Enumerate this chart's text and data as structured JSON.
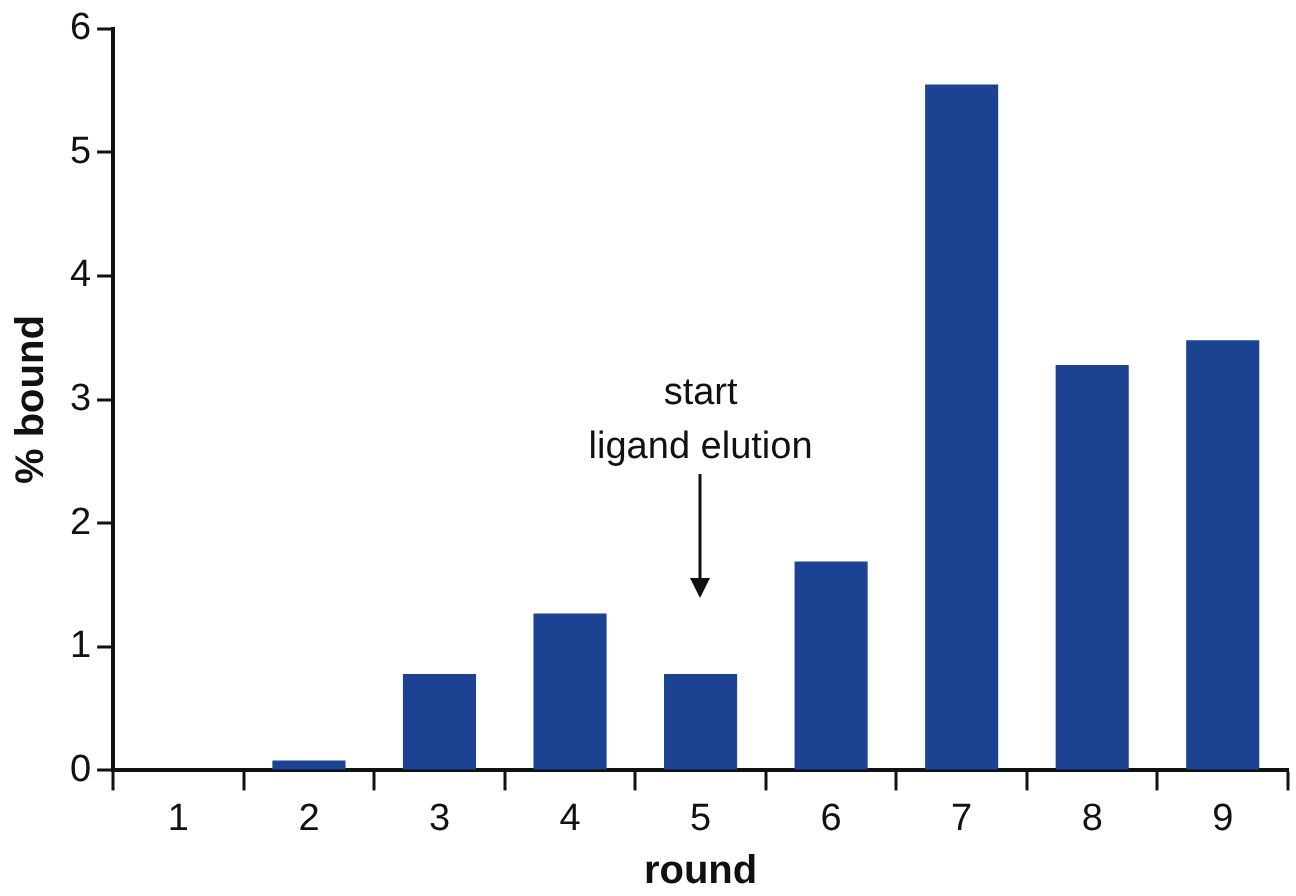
{
  "chart_data": {
    "type": "bar",
    "xlabel": "round",
    "ylabel": "% bound",
    "categories": [
      "1",
      "2",
      "3",
      "4",
      "5",
      "6",
      "7",
      "8",
      "9"
    ],
    "values": [
      0,
      0.08,
      0.78,
      1.27,
      0.78,
      1.69,
      5.55,
      3.28,
      3.48
    ],
    "color": "#1c4391",
    "ylim": [
      0,
      6
    ],
    "yticks": [
      0,
      1,
      2,
      3,
      4,
      5,
      6
    ],
    "grid": false,
    "legend": false,
    "annotations": [
      "start\nligand elution"
    ]
  }
}
